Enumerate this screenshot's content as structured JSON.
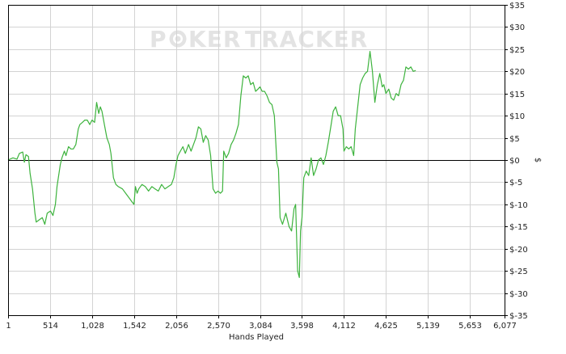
{
  "watermark": {
    "left": "P",
    "mid": "KER",
    "right": "TRACKER"
  },
  "colors": {
    "line": "#3db33d",
    "zero_line": "#000000",
    "grid": "#d3d3d3",
    "axis": "#000000",
    "watermark": "#e3e3e3"
  },
  "chart_data": {
    "type": "line",
    "title": "",
    "xlabel": "Hands Played",
    "ylabel": "$",
    "x_ticks": [
      1,
      514,
      1028,
      1542,
      2056,
      2570,
      3084,
      3598,
      4112,
      4625,
      5139,
      5653,
      6077
    ],
    "x_tick_labels": [
      "1",
      "514",
      "1,028",
      "1,542",
      "2,056",
      "2,570",
      "3,084",
      "3,598",
      "4,112",
      "4,625",
      "5,139",
      "5,653",
      "6,077"
    ],
    "y_ticks": [
      35,
      30,
      25,
      20,
      15,
      10,
      5,
      0,
      -5,
      -10,
      -15,
      -20,
      -25,
      -30,
      -35
    ],
    "y_tick_labels": [
      "$35",
      "$30",
      "$25",
      "$20",
      "$15",
      "$10",
      "$5",
      "$0",
      "$-5",
      "$-10",
      "$-15",
      "$-20",
      "$-25",
      "$-30",
      "$-35"
    ],
    "xlim": [
      1,
      6077
    ],
    "ylim": [
      -35,
      35
    ],
    "grid": true,
    "y_axis_side": "right",
    "series": [
      {
        "points": [
          [
            1,
            0
          ],
          [
            60,
            0.5
          ],
          [
            110,
            0.2
          ],
          [
            140,
            1.5
          ],
          [
            180,
            1.8
          ],
          [
            200,
            -0.5
          ],
          [
            220,
            1.2
          ],
          [
            250,
            0.8
          ],
          [
            270,
            -3
          ],
          [
            300,
            -6.5
          ],
          [
            330,
            -12
          ],
          [
            345,
            -14
          ],
          [
            380,
            -13.5
          ],
          [
            420,
            -13
          ],
          [
            450,
            -14.5
          ],
          [
            480,
            -12
          ],
          [
            520,
            -11.5
          ],
          [
            550,
            -12.5
          ],
          [
            580,
            -10
          ],
          [
            600,
            -6
          ],
          [
            640,
            -1
          ],
          [
            660,
            0.5
          ],
          [
            690,
            2
          ],
          [
            710,
            1
          ],
          [
            740,
            3
          ],
          [
            770,
            2.5
          ],
          [
            800,
            2.5
          ],
          [
            830,
            3.5
          ],
          [
            860,
            7
          ],
          [
            880,
            8
          ],
          [
            910,
            8.5
          ],
          [
            940,
            9
          ],
          [
            970,
            9
          ],
          [
            1000,
            8
          ],
          [
            1028,
            9
          ],
          [
            1060,
            8.5
          ],
          [
            1085,
            13
          ],
          [
            1110,
            10.5
          ],
          [
            1130,
            12
          ],
          [
            1150,
            11
          ],
          [
            1180,
            8
          ],
          [
            1210,
            5
          ],
          [
            1240,
            3.5
          ],
          [
            1260,
            1.5
          ],
          [
            1290,
            -4
          ],
          [
            1320,
            -5.5
          ],
          [
            1350,
            -6
          ],
          [
            1400,
            -6.5
          ],
          [
            1440,
            -7.5
          ],
          [
            1480,
            -8.5
          ],
          [
            1520,
            -9.5
          ],
          [
            1542,
            -10
          ],
          [
            1560,
            -6
          ],
          [
            1580,
            -7.5
          ],
          [
            1600,
            -6.5
          ],
          [
            1640,
            -5.5
          ],
          [
            1680,
            -6
          ],
          [
            1720,
            -7
          ],
          [
            1760,
            -6
          ],
          [
            1800,
            -6.5
          ],
          [
            1840,
            -7
          ],
          [
            1880,
            -5.5
          ],
          [
            1920,
            -6.5
          ],
          [
            1960,
            -6
          ],
          [
            2000,
            -5.5
          ],
          [
            2030,
            -4
          ],
          [
            2056,
            -1
          ],
          [
            2080,
            1
          ],
          [
            2110,
            2
          ],
          [
            2140,
            3
          ],
          [
            2170,
            1.5
          ],
          [
            2210,
            3.5
          ],
          [
            2240,
            2
          ],
          [
            2270,
            3.5
          ],
          [
            2300,
            5
          ],
          [
            2330,
            7.5
          ],
          [
            2360,
            7
          ],
          [
            2390,
            4
          ],
          [
            2420,
            5.5
          ],
          [
            2450,
            4.5
          ],
          [
            2480,
            1
          ],
          [
            2510,
            -6.5
          ],
          [
            2540,
            -7.5
          ],
          [
            2570,
            -7
          ],
          [
            2600,
            -7.5
          ],
          [
            2625,
            -7
          ],
          [
            2640,
            2
          ],
          [
            2670,
            0.5
          ],
          [
            2700,
            1.5
          ],
          [
            2730,
            3.5
          ],
          [
            2760,
            4.5
          ],
          [
            2790,
            6
          ],
          [
            2820,
            8
          ],
          [
            2850,
            14.5
          ],
          [
            2880,
            19
          ],
          [
            2910,
            18.5
          ],
          [
            2940,
            19
          ],
          [
            2970,
            17
          ],
          [
            3000,
            17.5
          ],
          [
            3030,
            15.5
          ],
          [
            3060,
            16
          ],
          [
            3084,
            16.5
          ],
          [
            3110,
            15.5
          ],
          [
            3140,
            15.5
          ],
          [
            3170,
            14.5
          ],
          [
            3200,
            13
          ],
          [
            3230,
            12.5
          ],
          [
            3260,
            10
          ],
          [
            3290,
            -0.5
          ],
          [
            3310,
            -2
          ],
          [
            3330,
            -13
          ],
          [
            3360,
            -14.5
          ],
          [
            3400,
            -12
          ],
          [
            3440,
            -15
          ],
          [
            3470,
            -16
          ],
          [
            3500,
            -11
          ],
          [
            3520,
            -10
          ],
          [
            3545,
            -25
          ],
          [
            3565,
            -26.5
          ],
          [
            3580,
            -16
          ],
          [
            3598,
            -13
          ],
          [
            3620,
            -4
          ],
          [
            3650,
            -2.5
          ],
          [
            3680,
            -3.5
          ],
          [
            3710,
            0.5
          ],
          [
            3740,
            -3.5
          ],
          [
            3770,
            -2
          ],
          [
            3800,
            0
          ],
          [
            3830,
            0.5
          ],
          [
            3860,
            -1
          ],
          [
            3890,
            1
          ],
          [
            3920,
            4
          ],
          [
            3950,
            7.5
          ],
          [
            3980,
            11
          ],
          [
            4010,
            12
          ],
          [
            4040,
            10
          ],
          [
            4070,
            10
          ],
          [
            4100,
            7
          ],
          [
            4112,
            2
          ],
          [
            4140,
            3
          ],
          [
            4170,
            2.5
          ],
          [
            4200,
            3
          ],
          [
            4230,
            1
          ],
          [
            4250,
            7
          ],
          [
            4280,
            12
          ],
          [
            4310,
            17
          ],
          [
            4340,
            18.5
          ],
          [
            4370,
            19.5
          ],
          [
            4400,
            20
          ],
          [
            4430,
            24.5
          ],
          [
            4460,
            20
          ],
          [
            4490,
            13
          ],
          [
            4520,
            17
          ],
          [
            4550,
            19.5
          ],
          [
            4580,
            16.5
          ],
          [
            4600,
            17
          ],
          [
            4625,
            15
          ],
          [
            4660,
            16
          ],
          [
            4690,
            14
          ],
          [
            4720,
            13.5
          ],
          [
            4750,
            15
          ],
          [
            4780,
            14.5
          ],
          [
            4810,
            17
          ],
          [
            4840,
            18
          ],
          [
            4870,
            21
          ],
          [
            4900,
            20.5
          ],
          [
            4930,
            21
          ],
          [
            4960,
            20
          ],
          [
            4990,
            20.2
          ]
        ]
      }
    ]
  }
}
